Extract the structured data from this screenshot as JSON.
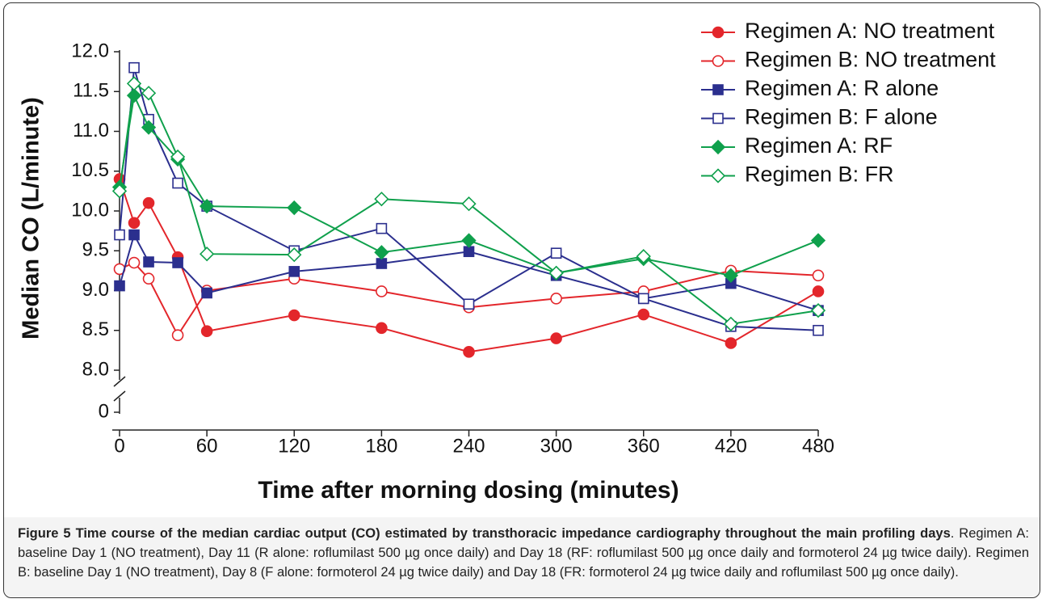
{
  "chart_data": {
    "type": "line",
    "y_label": "Median CO (L/minute)",
    "x_label": "Time after morning dosing (minutes)",
    "x": [
      0,
      10,
      20,
      40,
      60,
      120,
      180,
      240,
      300,
      360,
      420,
      480
    ],
    "xlim": [
      -5,
      480
    ],
    "xticks": [
      0,
      60,
      120,
      180,
      240,
      300,
      360,
      420,
      480
    ],
    "ylim": [
      8,
      12
    ],
    "yticks": [
      0,
      {
        "value": 8,
        "label": "8.0"
      },
      8.5,
      {
        "value": 9,
        "label": "9.0"
      },
      9.5,
      {
        "value": 10,
        "label": "10.0"
      },
      10.5,
      {
        "value": 11,
        "label": "11.0"
      },
      11.5,
      {
        "value": 12,
        "label": "12.0"
      }
    ],
    "legend": "top-right",
    "series": [
      {
        "name": "Regimen A: NO treatment",
        "color": "#e3262b",
        "marker": "circle",
        "filled": true,
        "values": [
          10.4,
          9.85,
          10.1,
          9.42,
          8.49,
          8.69,
          8.53,
          8.23,
          8.4,
          8.7,
          8.34,
          8.99
        ]
      },
      {
        "name": "Regimen B: NO treatment",
        "color": "#e3262b",
        "marker": "circle",
        "filled": false,
        "values": [
          9.27,
          9.35,
          9.15,
          8.44,
          9.0,
          9.15,
          8.99,
          8.79,
          8.9,
          8.99,
          9.25,
          9.19
        ]
      },
      {
        "name": "Regimen A: R alone",
        "color": "#2b2f8e",
        "marker": "square",
        "filled": true,
        "values": [
          9.06,
          9.7,
          9.36,
          9.35,
          8.97,
          9.24,
          9.34,
          9.49,
          9.19,
          8.9,
          9.09,
          8.75
        ]
      },
      {
        "name": "Regimen B: F alone",
        "color": "#2b2f8e",
        "marker": "square",
        "filled": false,
        "values": [
          9.7,
          11.8,
          11.15,
          10.35,
          10.06,
          9.5,
          9.78,
          8.83,
          9.47,
          8.9,
          8.55,
          8.5
        ]
      },
      {
        "name": "Regimen A: RF",
        "color": "#0fa04c",
        "marker": "diamond",
        "filled": true,
        "values": [
          10.3,
          11.45,
          11.05,
          10.65,
          10.06,
          10.04,
          9.48,
          9.63,
          9.22,
          9.4,
          9.19,
          9.63
        ]
      },
      {
        "name": "Regimen B: FR",
        "color": "#0fa04c",
        "marker": "diamond",
        "filled": false,
        "values": [
          10.25,
          11.6,
          11.48,
          10.68,
          9.46,
          9.45,
          10.15,
          10.09,
          9.22,
          9.43,
          8.58,
          8.75
        ]
      }
    ]
  },
  "caption": {
    "label": "Figure 5",
    "title": "Time course of the median cardiac output (CO) estimated by transthoracic impedance cardiography throughout the main profiling days",
    "text": ". Regimen A: baseline Day 1 (NO treatment), Day 11 (R alone: roflumilast 500 µg once daily) and Day 18 (RF: roflumilast 500 µg once daily and formoterol 24 µg twice daily). Regimen B: baseline Day 1 (NO treatment), Day 8 (F alone: formoterol 24 µg twice daily) and Day 18 (FR: formoterol 24 µg twice daily and roflumilast 500 µg once daily)."
  }
}
